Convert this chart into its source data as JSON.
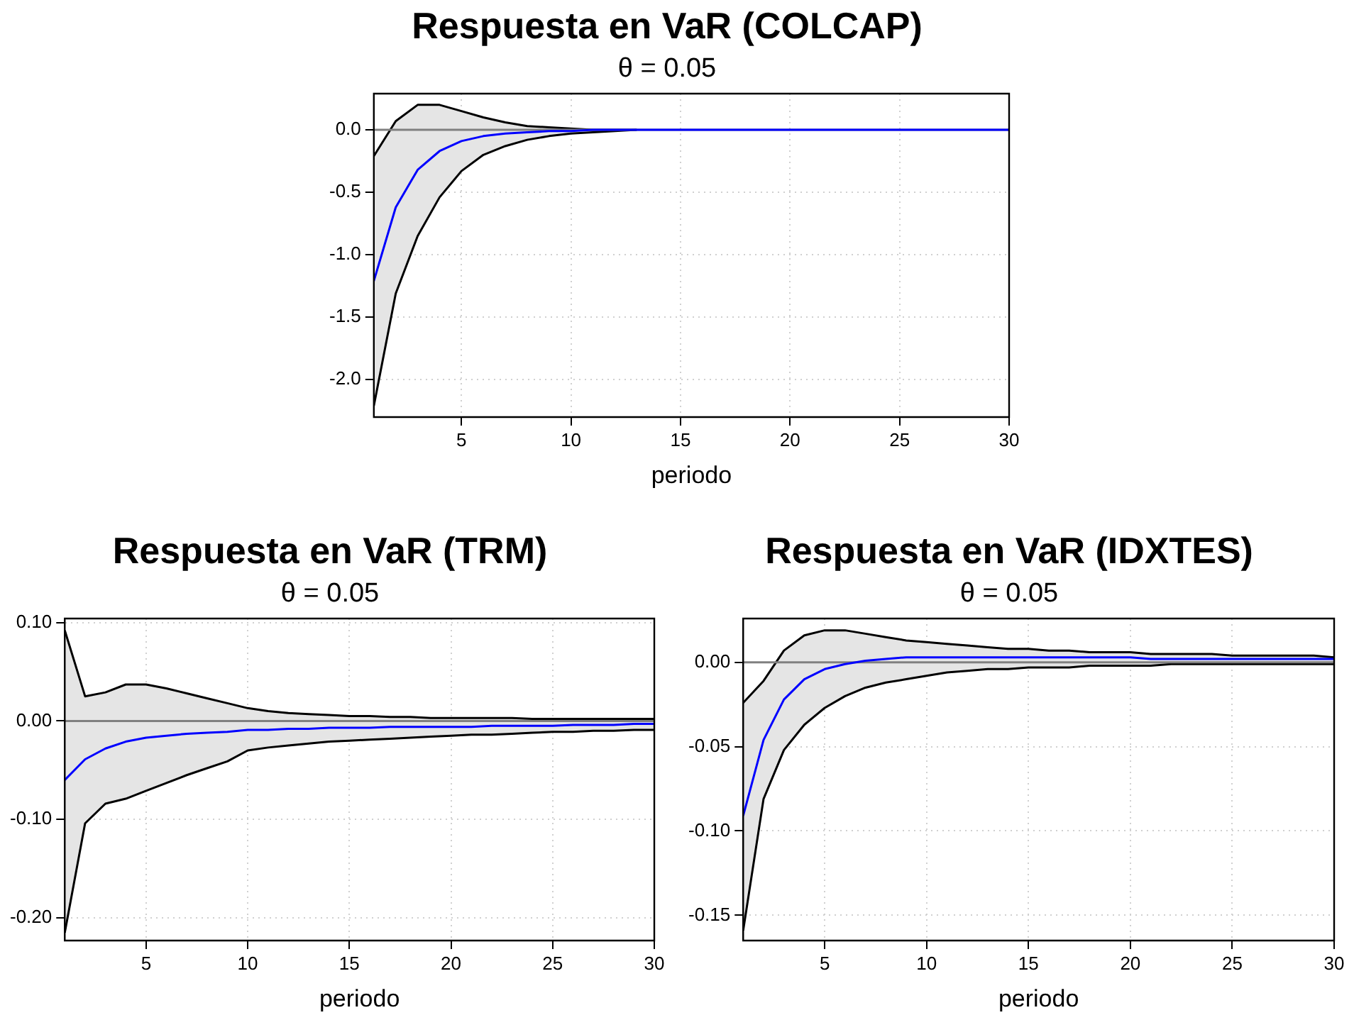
{
  "chart_data": [
    {
      "type": "line",
      "title": "Respuesta en VaR (COLCAP)",
      "subtitle": "θ = 0.05",
      "xlabel": "periodo",
      "x": [
        1,
        2,
        3,
        4,
        5,
        6,
        7,
        8,
        9,
        10,
        11,
        12,
        13,
        14,
        15,
        16,
        17,
        18,
        19,
        20,
        21,
        22,
        23,
        24,
        25,
        26,
        27,
        28,
        29,
        30
      ],
      "series": [
        {
          "color": "#0000ff",
          "values": [
            -1.21,
            -0.62,
            -0.32,
            -0.17,
            -0.09,
            -0.05,
            -0.03,
            -0.02,
            -0.01,
            -0.01,
            0,
            0,
            0,
            0,
            0,
            0,
            0,
            0,
            0,
            0,
            0,
            0,
            0,
            0,
            0,
            0,
            0,
            0,
            0,
            0
          ],
          "lower": [
            -2.21,
            -1.31,
            -0.85,
            -0.54,
            -0.33,
            -0.2,
            -0.13,
            -0.08,
            -0.05,
            -0.03,
            -0.02,
            -0.01,
            0,
            0,
            0,
            0,
            0,
            0,
            0,
            0,
            0,
            0,
            0,
            0,
            0,
            0,
            0,
            0,
            0,
            0
          ],
          "upper": [
            -0.21,
            0.07,
            0.2,
            0.2,
            0.15,
            0.1,
            0.06,
            0.03,
            0.02,
            0.01,
            0,
            0,
            0,
            0,
            0,
            0,
            0,
            0,
            0,
            0,
            0,
            0,
            0,
            0,
            0,
            0,
            0,
            0,
            0,
            0
          ]
        },
        {
          "color": "#000000",
          "values": [
            -2.21,
            -1.31,
            -0.85,
            -0.54,
            -0.33,
            -0.2,
            -0.13,
            -0.08,
            -0.05,
            -0.03,
            -0.02,
            -0.01,
            0,
            null,
            null,
            null,
            null,
            null,
            null,
            null,
            null,
            null,
            null,
            null,
            null,
            null,
            null,
            null,
            null,
            null
          ]
        },
        {
          "color": "#000000",
          "values": [
            -0.21,
            0.07,
            0.2,
            0.2,
            0.15,
            0.1,
            0.06,
            0.03,
            0.02,
            0.01,
            0,
            0,
            0,
            null,
            null,
            null,
            null,
            null,
            null,
            null,
            null,
            null,
            null,
            null,
            null,
            null,
            null,
            null,
            null,
            null
          ]
        }
      ],
      "xlim": [
        1,
        30
      ],
      "xticks": [
        5,
        10,
        15,
        20,
        25,
        30
      ],
      "ylim": [
        -2.3,
        0.29
      ],
      "yticks": [
        {
          "value": -2,
          "label": "-2.0"
        },
        {
          "value": -1.5,
          "label": "-1.5"
        },
        {
          "value": -1,
          "label": "-1.0"
        },
        {
          "value": -0.5,
          "label": "-0.5"
        },
        {
          "value": 0,
          "label": "0.0"
        }
      ],
      "ref_lines": [
        {
          "axis": "y",
          "value": 0,
          "color": "#808080"
        }
      ],
      "grid": true,
      "legend": false,
      "marker": "none",
      "line_style": "solid"
    },
    {
      "type": "line",
      "title": "Respuesta en VaR (TRM)",
      "subtitle": "θ = 0.05",
      "xlabel": "periodo",
      "x": [
        1,
        2,
        3,
        4,
        5,
        6,
        7,
        8,
        9,
        10,
        11,
        12,
        13,
        14,
        15,
        16,
        17,
        18,
        19,
        20,
        21,
        22,
        23,
        24,
        25,
        26,
        27,
        28,
        29,
        30
      ],
      "series": [
        {
          "color": "#0000ff",
          "values": [
            -0.06,
            -0.039,
            -0.028,
            -0.021,
            -0.017,
            -0.015,
            -0.013,
            -0.012,
            -0.011,
            -0.009,
            -0.009,
            -0.008,
            -0.008,
            -0.007,
            -0.007,
            -0.007,
            -0.006,
            -0.006,
            -0.006,
            -0.006,
            -0.006,
            -0.005,
            -0.005,
            -0.005,
            -0.005,
            -0.004,
            -0.004,
            -0.004,
            -0.003,
            -0.003
          ],
          "lower": [
            -0.215,
            -0.104,
            -0.084,
            -0.079,
            -0.071,
            -0.063,
            -0.055,
            -0.048,
            -0.041,
            -0.03,
            -0.027,
            -0.025,
            -0.023,
            -0.021,
            -0.02,
            -0.019,
            -0.018,
            -0.017,
            -0.016,
            -0.015,
            -0.014,
            -0.014,
            -0.013,
            -0.012,
            -0.011,
            -0.011,
            -0.01,
            -0.01,
            -0.009,
            -0.009
          ],
          "upper": [
            0.092,
            0.025,
            0.029,
            0.037,
            0.037,
            0.033,
            0.028,
            0.023,
            0.018,
            0.013,
            0.01,
            0.008,
            0.007,
            0.006,
            0.005,
            0.005,
            0.004,
            0.004,
            0.003,
            0.003,
            0.003,
            0.003,
            0.003,
            0.002,
            0.002,
            0.002,
            0.002,
            0.002,
            0.002,
            0.002
          ]
        },
        {
          "color": "#000000",
          "values": [
            -0.215,
            -0.104,
            -0.084,
            -0.079,
            -0.071,
            -0.063,
            -0.055,
            -0.048,
            -0.041,
            -0.03,
            -0.027,
            -0.025,
            -0.023,
            -0.021,
            -0.02,
            -0.019,
            -0.018,
            -0.017,
            -0.016,
            -0.015,
            -0.014,
            -0.014,
            -0.013,
            -0.012,
            -0.011,
            -0.011,
            -0.01,
            -0.01,
            -0.009,
            -0.009
          ]
        },
        {
          "color": "#000000",
          "values": [
            0.092,
            0.025,
            0.029,
            0.037,
            0.037,
            0.033,
            0.028,
            0.023,
            0.018,
            0.013,
            0.01,
            0.008,
            0.007,
            0.006,
            0.005,
            0.005,
            0.004,
            0.004,
            0.003,
            0.003,
            0.003,
            0.003,
            0.003,
            0.002,
            0.002,
            0.002,
            0.002,
            0.002,
            0.002,
            0.002
          ]
        }
      ],
      "xlim": [
        1,
        30
      ],
      "xticks": [
        5,
        10,
        15,
        20,
        25,
        30
      ],
      "ylim": [
        -0.223,
        0.104
      ],
      "yticks": [
        {
          "value": -0.2,
          "label": "-0.20"
        },
        {
          "value": -0.1,
          "label": "-0.10"
        },
        {
          "value": 0,
          "label": "0.00"
        },
        {
          "value": 0.1,
          "label": "0.10"
        }
      ],
      "ref_lines": [
        {
          "axis": "y",
          "value": 0,
          "color": "#808080"
        }
      ],
      "grid": true,
      "legend": false,
      "marker": "none",
      "line_style": "solid"
    },
    {
      "type": "line",
      "title": "Respuesta en VaR (IDXTES)",
      "subtitle": "θ = 0.05",
      "xlabel": "periodo",
      "x": [
        1,
        2,
        3,
        4,
        5,
        6,
        7,
        8,
        9,
        10,
        11,
        12,
        13,
        14,
        15,
        16,
        17,
        18,
        19,
        20,
        21,
        22,
        23,
        24,
        25,
        26,
        27,
        28,
        29,
        30
      ],
      "series": [
        {
          "color": "#0000ff",
          "values": [
            -0.091,
            -0.046,
            -0.022,
            -0.01,
            -0.004,
            -0.001,
            0.001,
            0.002,
            0.003,
            0.003,
            0.003,
            0.003,
            0.003,
            0.003,
            0.003,
            0.003,
            0.003,
            0.003,
            0.003,
            0.003,
            0.002,
            0.002,
            0.002,
            0.002,
            0.002,
            0.002,
            0.002,
            0.002,
            0.002,
            0.002
          ],
          "lower": [
            -0.159,
            -0.081,
            -0.052,
            -0.037,
            -0.027,
            -0.02,
            -0.015,
            -0.012,
            -0.01,
            -0.008,
            -0.006,
            -0.005,
            -0.004,
            -0.004,
            -0.003,
            -0.003,
            -0.003,
            -0.002,
            -0.002,
            -0.002,
            -0.002,
            -0.001,
            -0.001,
            -0.001,
            -0.001,
            -0.001,
            -0.001,
            -0.001,
            -0.001,
            -0.001
          ],
          "upper": [
            -0.024,
            -0.011,
            0.007,
            0.016,
            0.019,
            0.019,
            0.017,
            0.015,
            0.013,
            0.012,
            0.011,
            0.01,
            0.009,
            0.008,
            0.008,
            0.007,
            0.007,
            0.006,
            0.006,
            0.006,
            0.005,
            0.005,
            0.005,
            0.005,
            0.004,
            0.004,
            0.004,
            0.004,
            0.004,
            0.003
          ]
        },
        {
          "color": "#000000",
          "values": [
            -0.159,
            -0.081,
            -0.052,
            -0.037,
            -0.027,
            -0.02,
            -0.015,
            -0.012,
            -0.01,
            -0.008,
            -0.006,
            -0.005,
            -0.004,
            -0.004,
            -0.003,
            -0.003,
            -0.003,
            -0.002,
            -0.002,
            -0.002,
            -0.002,
            -0.001,
            -0.001,
            -0.001,
            -0.001,
            -0.001,
            -0.001,
            -0.001,
            -0.001,
            -0.001
          ]
        },
        {
          "color": "#000000",
          "values": [
            -0.024,
            -0.011,
            0.007,
            0.016,
            0.019,
            0.019,
            0.017,
            0.015,
            0.013,
            0.012,
            0.011,
            0.01,
            0.009,
            0.008,
            0.008,
            0.007,
            0.007,
            0.006,
            0.006,
            0.006,
            0.005,
            0.005,
            0.005,
            0.005,
            0.004,
            0.004,
            0.004,
            0.004,
            0.004,
            0.003
          ]
        }
      ],
      "xlim": [
        1,
        30
      ],
      "xticks": [
        5,
        10,
        15,
        20,
        25,
        30
      ],
      "ylim": [
        -0.165,
        0.026
      ],
      "yticks": [
        {
          "value": -0.15,
          "label": "-0.15"
        },
        {
          "value": -0.1,
          "label": "-0.10"
        },
        {
          "value": -0.05,
          "label": "-0.05"
        },
        {
          "value": 0,
          "label": "0.00"
        }
      ],
      "ref_lines": [
        {
          "axis": "y",
          "value": 0,
          "color": "#808080"
        }
      ],
      "grid": true,
      "legend": false,
      "marker": "none",
      "line_style": "solid"
    }
  ]
}
